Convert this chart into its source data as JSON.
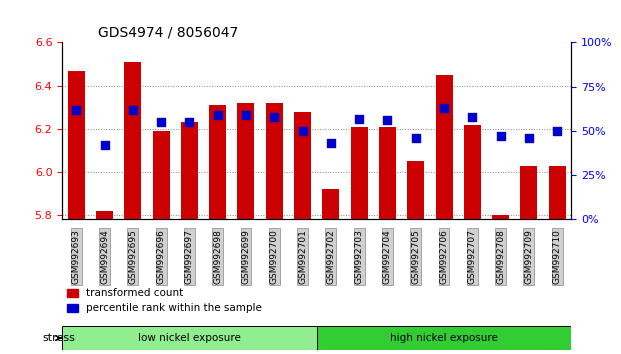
{
  "title": "GDS4974 / 8056047",
  "samples": [
    "GSM992693",
    "GSM992694",
    "GSM992695",
    "GSM992696",
    "GSM992697",
    "GSM992698",
    "GSM992699",
    "GSM992700",
    "GSM992701",
    "GSM992702",
    "GSM992703",
    "GSM992704",
    "GSM992705",
    "GSM992706",
    "GSM992707",
    "GSM992708",
    "GSM992709",
    "GSM992710"
  ],
  "transformed_count": [
    6.47,
    5.82,
    6.51,
    6.19,
    6.23,
    6.31,
    6.32,
    6.32,
    6.28,
    5.92,
    6.21,
    6.21,
    6.05,
    6.45,
    6.22,
    5.8,
    6.03,
    6.03
  ],
  "percentile_rank": [
    62,
    42,
    62,
    55,
    55,
    59,
    59,
    58,
    50,
    43,
    57,
    56,
    46,
    63,
    58,
    47,
    46,
    50
  ],
  "groups": [
    {
      "label": "low nickel exposure",
      "start": 0,
      "end": 9,
      "color": "#90EE90"
    },
    {
      "label": "high nickel exposure",
      "start": 9,
      "end": 18,
      "color": "#32CD32"
    }
  ],
  "group_label": "stress",
  "ylim_left": [
    5.78,
    6.6
  ],
  "ylim_right": [
    0,
    100
  ],
  "yticks_left": [
    5.8,
    6.0,
    6.2,
    6.4,
    6.6
  ],
  "yticks_right": [
    0,
    25,
    50,
    75,
    100
  ],
  "ytick_labels_right": [
    "0%",
    "25%",
    "50%",
    "75%",
    "100%"
  ],
  "bar_color": "#CC0000",
  "dot_color": "#0000CC",
  "bar_width": 0.6,
  "dot_size": 40,
  "grid_color": "#888888",
  "background_color": "#f0f0f0",
  "legend_items": [
    {
      "label": "transformed count",
      "color": "#CC0000",
      "marker": "s"
    },
    {
      "label": "percentile rank within the sample",
      "color": "#0000CC",
      "marker": "s"
    }
  ]
}
